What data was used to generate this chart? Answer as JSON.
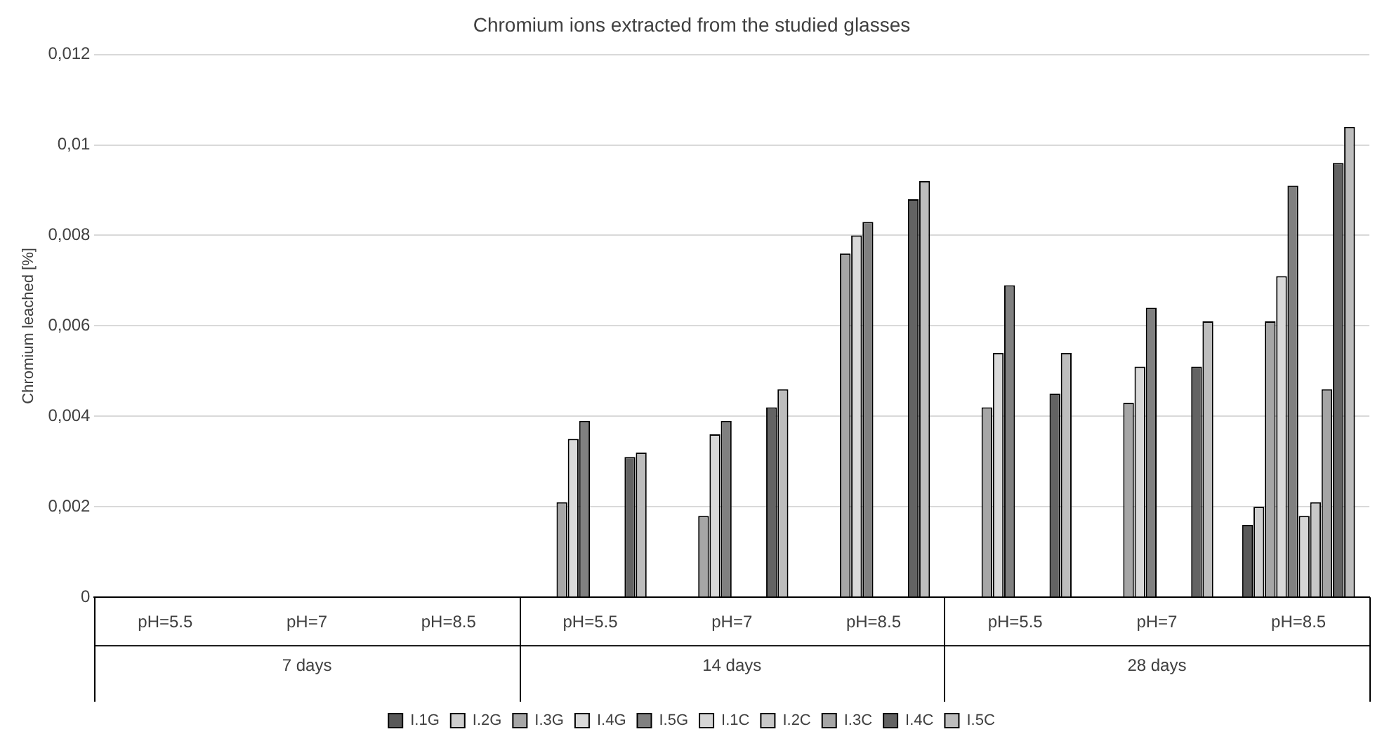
{
  "chart_data": {
    "type": "bar",
    "title": "Chromium ions extracted from the studied glasses",
    "ylabel": "Chromium leached [%]",
    "categories": [
      "pH=5.5",
      "pH=7",
      "pH=8.5",
      "pH=5.5",
      "pH=7",
      "pH=8.5",
      "pH=5.5",
      "pH=7",
      "pH=8.5"
    ],
    "annotations": [
      "7 days",
      "14 days",
      "28 days"
    ],
    "series": [
      {
        "name": "I.1G",
        "color": "#595959",
        "values": [
          null,
          null,
          null,
          null,
          null,
          null,
          null,
          null,
          0.0016
        ]
      },
      {
        "name": "I.2G",
        "color": "#cfcfcf",
        "values": [
          null,
          null,
          null,
          null,
          null,
          null,
          null,
          null,
          0.002
        ]
      },
      {
        "name": "I.3G",
        "color": "#a6a6a6",
        "values": [
          null,
          null,
          null,
          0.0021,
          0.0018,
          0.0076,
          0.0042,
          0.0043,
          0.0061
        ]
      },
      {
        "name": "I.4G",
        "color": "#d9d9d9",
        "values": [
          null,
          null,
          null,
          0.0035,
          0.0036,
          0.008,
          0.0054,
          0.0051,
          0.0071
        ]
      },
      {
        "name": "I.5G",
        "color": "#808080",
        "values": [
          null,
          null,
          null,
          0.0039,
          0.0039,
          0.0083,
          0.0069,
          0.0064,
          0.0091
        ]
      },
      {
        "name": "I.1C",
        "color": "#d6d6d6",
        "values": [
          null,
          null,
          null,
          null,
          null,
          null,
          null,
          null,
          0.0018
        ]
      },
      {
        "name": "I.2C",
        "color": "#c8c8c8",
        "values": [
          null,
          null,
          null,
          null,
          null,
          null,
          null,
          null,
          0.0021
        ]
      },
      {
        "name": "I.3C",
        "color": "#a5a5a5",
        "values": [
          null,
          null,
          null,
          null,
          null,
          null,
          null,
          null,
          0.0046
        ]
      },
      {
        "name": "I.4C",
        "color": "#636363",
        "values": [
          null,
          null,
          null,
          0.0031,
          0.0042,
          0.0088,
          0.0045,
          0.0051,
          0.0096
        ]
      },
      {
        "name": "I.5C",
        "color": "#bdbdbd",
        "values": [
          null,
          null,
          null,
          0.0032,
          0.0046,
          0.0092,
          0.0054,
          0.0061,
          0.0104
        ]
      }
    ],
    "ylim": [
      0,
      0.012
    ],
    "yticks": [
      0,
      {
        "value": 0.002,
        "label": "0,002"
      },
      {
        "value": 0.004,
        "label": "0,004"
      },
      {
        "value": 0.006,
        "label": "0,006"
      },
      {
        "value": 0.008,
        "label": "0,008"
      },
      {
        "value": 0.01,
        "label": "0,01"
      },
      {
        "value": 0.012,
        "label": "0,012"
      }
    ],
    "grid": "y",
    "legend": "bottom"
  }
}
